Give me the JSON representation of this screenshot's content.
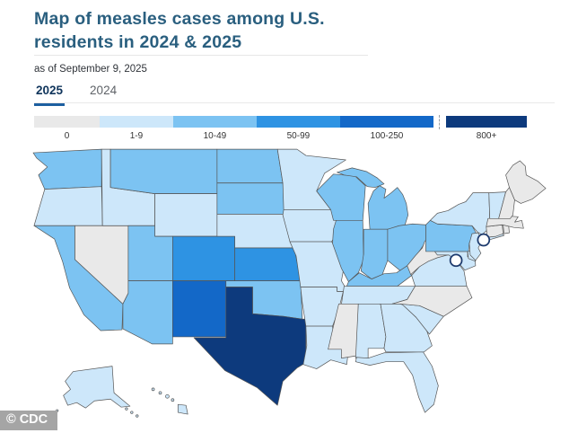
{
  "header": {
    "title": "Map of measles cases among U.S. residents in 2024 & 2025",
    "as_of": "as of September 9, 2025"
  },
  "tabs": [
    {
      "label": "2025",
      "active": true
    },
    {
      "label": "2024",
      "active": false
    }
  ],
  "legend": {
    "colors": {
      "0": "#e9e9e9",
      "1-9": "#cde7fa",
      "10-49": "#7cc3f2",
      "50-99": "#2e93e3",
      "100-250": "#1368c8",
      "800+": "#0d3a7d"
    },
    "categories": [
      {
        "label": "0"
      },
      {
        "label": "1-9"
      },
      {
        "label": "10-49"
      },
      {
        "label": "50-99"
      },
      {
        "label": "100-250"
      },
      {
        "label": "800+",
        "separated": true
      }
    ]
  },
  "map": {
    "type": "choropleth",
    "states": {
      "WA": {
        "name": "Washington",
        "category": "10-49"
      },
      "OR": {
        "name": "Oregon",
        "category": "1-9"
      },
      "CA": {
        "name": "California",
        "category": "10-49"
      },
      "NV": {
        "name": "Nevada",
        "category": "0"
      },
      "ID": {
        "name": "Idaho",
        "category": "1-9"
      },
      "MT": {
        "name": "Montana",
        "category": "10-49"
      },
      "WY": {
        "name": "Wyoming",
        "category": "1-9"
      },
      "UT": {
        "name": "Utah",
        "category": "10-49"
      },
      "CO": {
        "name": "Colorado",
        "category": "50-99"
      },
      "AZ": {
        "name": "Arizona",
        "category": "10-49"
      },
      "NM": {
        "name": "New Mexico",
        "category": "100-250"
      },
      "ND": {
        "name": "North Dakota",
        "category": "10-49"
      },
      "SD": {
        "name": "South Dakota",
        "category": "10-49"
      },
      "NE": {
        "name": "Nebraska",
        "category": "1-9"
      },
      "KS": {
        "name": "Kansas",
        "category": "50-99"
      },
      "OK": {
        "name": "Oklahoma",
        "category": "10-49"
      },
      "TX": {
        "name": "Texas",
        "category": "800+"
      },
      "MN": {
        "name": "Minnesota",
        "category": "1-9"
      },
      "IA": {
        "name": "Iowa",
        "category": "1-9"
      },
      "MO": {
        "name": "Missouri",
        "category": "1-9"
      },
      "AR": {
        "name": "Arkansas",
        "category": "1-9"
      },
      "LA": {
        "name": "Louisiana",
        "category": "1-9"
      },
      "WI": {
        "name": "Wisconsin",
        "category": "10-49"
      },
      "IL": {
        "name": "Illinois",
        "category": "10-49"
      },
      "MI": {
        "name": "Michigan",
        "category": "10-49"
      },
      "IN": {
        "name": "Indiana",
        "category": "10-49"
      },
      "OH": {
        "name": "Ohio",
        "category": "10-49"
      },
      "KY": {
        "name": "Kentucky",
        "category": "10-49"
      },
      "TN": {
        "name": "Tennessee",
        "category": "1-9"
      },
      "MS": {
        "name": "Mississippi",
        "category": "0"
      },
      "AL": {
        "name": "Alabama",
        "category": "1-9"
      },
      "GA": {
        "name": "Georgia",
        "category": "1-9"
      },
      "FL": {
        "name": "Florida",
        "category": "1-9"
      },
      "SC": {
        "name": "South Carolina",
        "category": "1-9"
      },
      "NC": {
        "name": "North Carolina",
        "category": "0"
      },
      "VA": {
        "name": "Virginia",
        "category": "1-9"
      },
      "WV": {
        "name": "West Virginia",
        "category": "0"
      },
      "MD": {
        "name": "Maryland",
        "category": "1-9"
      },
      "DE": {
        "name": "Delaware",
        "category": "1-9"
      },
      "PA": {
        "name": "Pennsylvania",
        "category": "10-49"
      },
      "NJ": {
        "name": "New Jersey",
        "category": "1-9"
      },
      "NY": {
        "name": "New York",
        "category": "1-9"
      },
      "CT": {
        "name": "Connecticut",
        "category": "0"
      },
      "RI": {
        "name": "Rhode Island",
        "category": "0"
      },
      "MA": {
        "name": "Massachusetts",
        "category": "0"
      },
      "VT": {
        "name": "Vermont",
        "category": "1-9"
      },
      "NH": {
        "name": "New Hampshire",
        "category": "0"
      },
      "ME": {
        "name": "Maine",
        "category": "0"
      },
      "AK": {
        "name": "Alaska",
        "category": "1-9"
      },
      "HI": {
        "name": "Hawaii",
        "category": "1-9"
      }
    },
    "markers": [
      {
        "id": "dc",
        "name": "District of Columbia",
        "fill": "#ffffff"
      },
      {
        "id": "nyc",
        "name": "New York City",
        "fill": "#ffffff"
      }
    ]
  },
  "watermark": "© CDC",
  "theme": {
    "title_color": "#2a5f7f",
    "tab_underline": "#1d5fa0",
    "state_border": "#555555",
    "marker_border": "#1d3a6d"
  }
}
